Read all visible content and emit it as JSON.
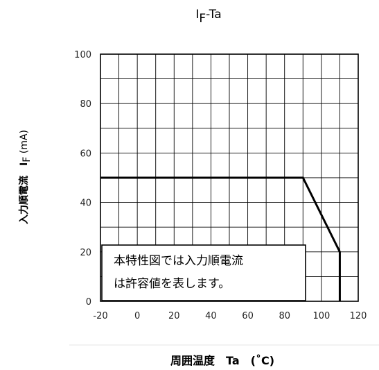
{
  "chart_data": {
    "type": "line",
    "title": {
      "main": "I",
      "sub": "F",
      "suffix": "-Ta"
    },
    "xlabel": "周囲温度　Ta　(˚C)",
    "ylabel": {
      "main": "入力順電流　I",
      "sub": "F",
      "suffix": " (mA)"
    },
    "xlim": [
      -20,
      120
    ],
    "ylim": [
      0,
      100
    ],
    "x_ticks": [
      "-20",
      "0",
      "20",
      "40",
      "60",
      "80",
      "100",
      "120"
    ],
    "y_ticks": [
      "0",
      "20",
      "40",
      "60",
      "80",
      "100"
    ],
    "grid": true,
    "series": [
      {
        "x": [
          -20,
          90,
          110,
          110
        ],
        "y": [
          50,
          50,
          20,
          0
        ]
      }
    ],
    "annotation": {
      "lines": [
        "本特性図では入力順電流",
        "は許容値を表します。"
      ]
    }
  }
}
